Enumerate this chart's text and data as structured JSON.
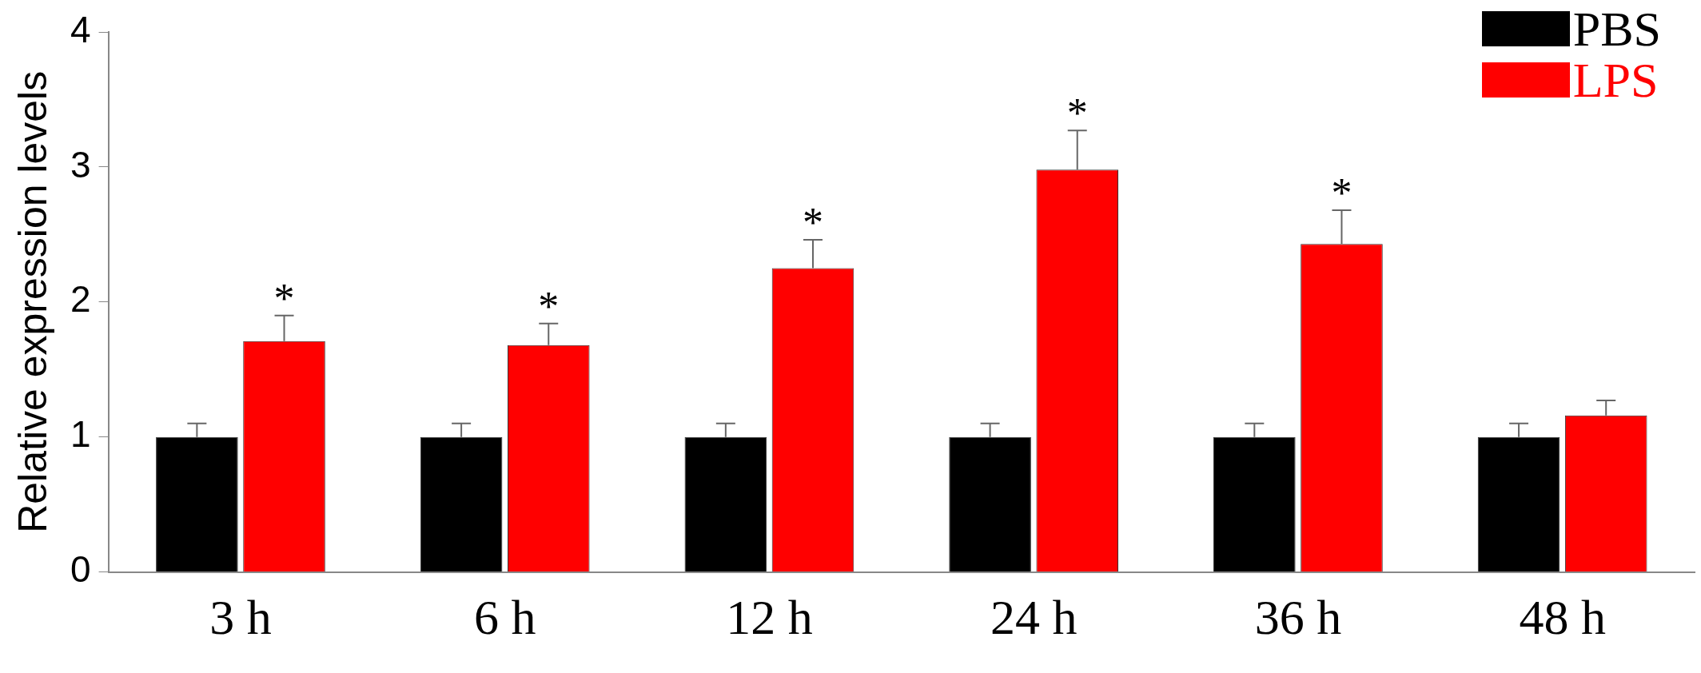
{
  "chart_data": {
    "type": "bar",
    "ylabel": "Relative expression levels",
    "categories": [
      "3 h",
      "6 h",
      "12 h",
      "24 h",
      "36 h",
      "48 h"
    ],
    "series": [
      {
        "name": "PBS",
        "color": "#000000",
        "values": [
          1,
          1,
          1,
          1,
          1,
          1
        ],
        "errors": [
          [
            1,
            1.1
          ],
          [
            1,
            1.1
          ],
          [
            1,
            1.1
          ],
          [
            1,
            1.1
          ],
          [
            1,
            1.1
          ],
          [
            1,
            1.1
          ]
        ]
      },
      {
        "name": "LPS",
        "color": "#ff0000",
        "values": [
          1.71,
          1.68,
          2.25,
          2.98,
          2.43,
          1.16
        ],
        "value_labels": [
          "*",
          "*",
          "*",
          "*",
          "*",
          null
        ],
        "errors": [
          [
            1.71,
            1.9
          ],
          [
            1.68,
            1.84
          ],
          [
            2.25,
            2.46
          ],
          [
            2.98,
            3.27
          ],
          [
            2.43,
            2.68
          ],
          [
            1.16,
            1.27
          ]
        ]
      }
    ],
    "ylim": [
      0,
      4
    ],
    "yticks": [
      0,
      1,
      2,
      3,
      4
    ],
    "grid": false,
    "legend": "top right"
  }
}
